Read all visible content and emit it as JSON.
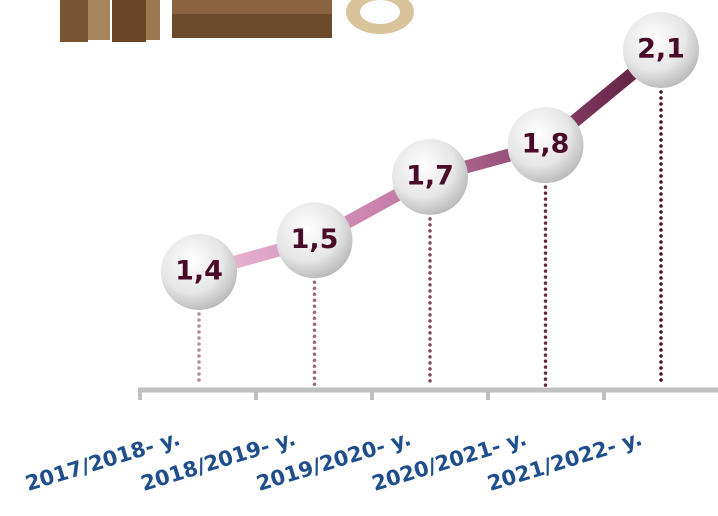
{
  "chart_data": {
    "type": "line",
    "categories": [
      "2017/2018- y.",
      "2018/2019- y.",
      "2019/2020- y.",
      "2020/2021- y.",
      "2021/2022- y."
    ],
    "values": [
      1.4,
      1.5,
      1.7,
      1.8,
      2.1
    ],
    "value_labels": [
      "1,4",
      "1,5",
      "1,7",
      "1,8",
      "2,1"
    ],
    "color": "#4a0a2a"
  }
}
